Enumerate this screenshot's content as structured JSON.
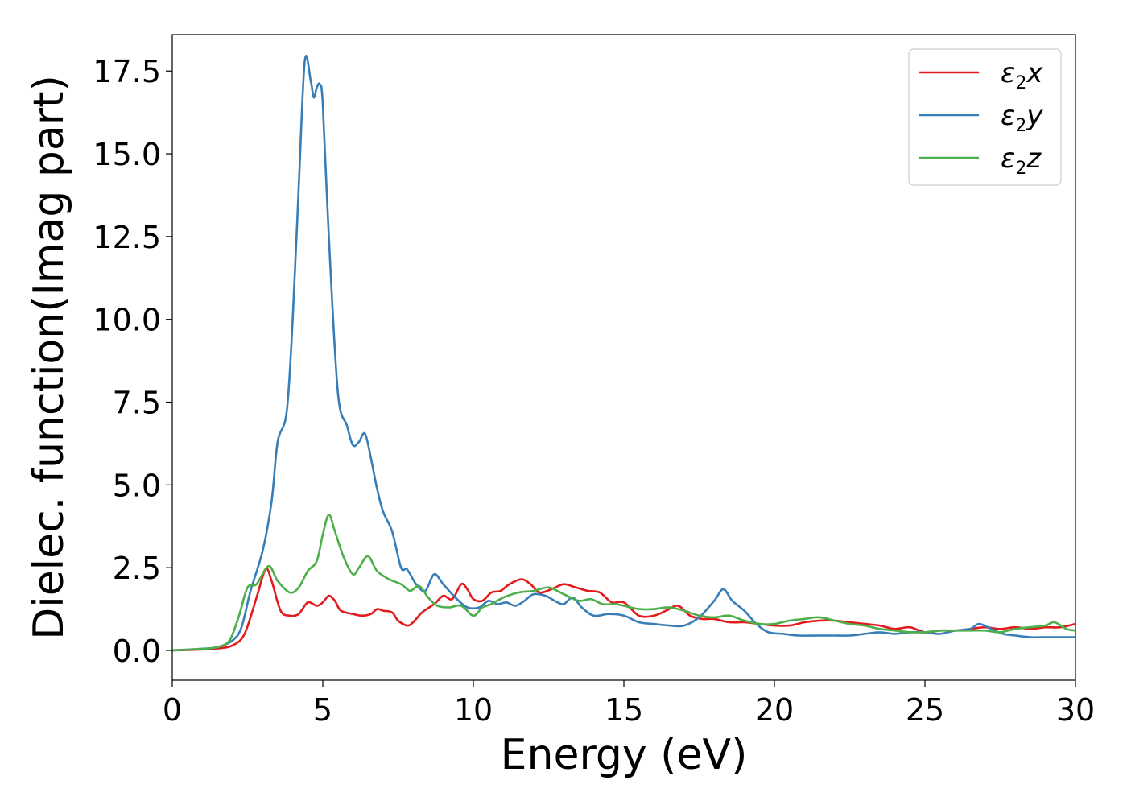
{
  "chart_data": {
    "type": "line",
    "xlabel": "Energy (eV)",
    "ylabel": "Dielec. function(Imag part)",
    "xlim": [
      0,
      30
    ],
    "ylim": [
      -0.9,
      18.6
    ],
    "x_ticks": [
      0,
      5,
      10,
      15,
      20,
      25,
      30
    ],
    "x_tick_labels": [
      "0",
      "5",
      "10",
      "15",
      "20",
      "25",
      "30"
    ],
    "y_ticks": [
      0,
      2.5,
      5,
      7.5,
      10,
      12.5,
      15,
      17.5
    ],
    "y_tick_labels": [
      "0.0",
      "2.5",
      "5.0",
      "7.5",
      "10.0",
      "12.5",
      "15.0",
      "17.5"
    ],
    "grid": false,
    "legend_position": "top-right",
    "series": [
      {
        "name": "ε2x",
        "legend": {
          "base": "ε",
          "sub": "2",
          "suffix": "x"
        },
        "color": "#e41a1c",
        "points": [
          [
            0,
            0
          ],
          [
            1,
            0.03
          ],
          [
            1.5,
            0.06
          ],
          [
            2,
            0.15
          ],
          [
            2.4,
            0.5
          ],
          [
            2.8,
            1.6
          ],
          [
            3.1,
            2.45
          ],
          [
            3.3,
            2.1
          ],
          [
            3.6,
            1.2
          ],
          [
            3.9,
            1.05
          ],
          [
            4.2,
            1.1
          ],
          [
            4.5,
            1.45
          ],
          [
            4.8,
            1.35
          ],
          [
            5.0,
            1.45
          ],
          [
            5.2,
            1.65
          ],
          [
            5.4,
            1.5
          ],
          [
            5.6,
            1.2
          ],
          [
            6.0,
            1.1
          ],
          [
            6.3,
            1.05
          ],
          [
            6.6,
            1.1
          ],
          [
            6.8,
            1.25
          ],
          [
            7.0,
            1.2
          ],
          [
            7.3,
            1.15
          ],
          [
            7.5,
            0.9
          ],
          [
            7.8,
            0.75
          ],
          [
            8.0,
            0.85
          ],
          [
            8.3,
            1.15
          ],
          [
            8.7,
            1.4
          ],
          [
            9.0,
            1.65
          ],
          [
            9.3,
            1.55
          ],
          [
            9.6,
            2.0
          ],
          [
            9.8,
            1.85
          ],
          [
            10.0,
            1.55
          ],
          [
            10.3,
            1.5
          ],
          [
            10.6,
            1.75
          ],
          [
            10.9,
            1.8
          ],
          [
            11.2,
            2.0
          ],
          [
            11.6,
            2.15
          ],
          [
            11.9,
            2.0
          ],
          [
            12.2,
            1.75
          ],
          [
            12.6,
            1.85
          ],
          [
            13.0,
            2.0
          ],
          [
            13.4,
            1.9
          ],
          [
            13.8,
            1.8
          ],
          [
            14.2,
            1.75
          ],
          [
            14.6,
            1.45
          ],
          [
            15.0,
            1.45
          ],
          [
            15.5,
            1.05
          ],
          [
            16.0,
            1.05
          ],
          [
            16.4,
            1.2
          ],
          [
            16.8,
            1.35
          ],
          [
            17.2,
            1.05
          ],
          [
            17.6,
            0.95
          ],
          [
            18.0,
            0.95
          ],
          [
            18.5,
            0.85
          ],
          [
            19.0,
            0.85
          ],
          [
            19.5,
            0.8
          ],
          [
            20.0,
            0.75
          ],
          [
            20.5,
            0.75
          ],
          [
            21.0,
            0.85
          ],
          [
            21.5,
            0.9
          ],
          [
            22.0,
            0.9
          ],
          [
            22.5,
            0.85
          ],
          [
            23.0,
            0.8
          ],
          [
            23.5,
            0.75
          ],
          [
            24.0,
            0.65
          ],
          [
            24.5,
            0.7
          ],
          [
            25.0,
            0.55
          ],
          [
            25.5,
            0.6
          ],
          [
            26.0,
            0.6
          ],
          [
            26.5,
            0.65
          ],
          [
            27.0,
            0.7
          ],
          [
            27.5,
            0.65
          ],
          [
            28.0,
            0.7
          ],
          [
            28.5,
            0.65
          ],
          [
            29.0,
            0.7
          ],
          [
            29.5,
            0.7
          ],
          [
            30.0,
            0.8
          ]
        ]
      },
      {
        "name": "ε2y",
        "legend": {
          "base": "ε",
          "sub": "2",
          "suffix": "y"
        },
        "color": "#377eb8",
        "points": [
          [
            0,
            0
          ],
          [
            1,
            0.05
          ],
          [
            1.5,
            0.1
          ],
          [
            2,
            0.3
          ],
          [
            2.3,
            0.7
          ],
          [
            2.6,
            1.8
          ],
          [
            3.0,
            3.0
          ],
          [
            3.3,
            4.5
          ],
          [
            3.5,
            6.3
          ],
          [
            3.8,
            7.2
          ],
          [
            4.0,
            10.0
          ],
          [
            4.2,
            14.0
          ],
          [
            4.4,
            17.8
          ],
          [
            4.6,
            17.2
          ],
          [
            4.7,
            16.7
          ],
          [
            4.8,
            17.0
          ],
          [
            4.9,
            17.1
          ],
          [
            5.0,
            16.5
          ],
          [
            5.2,
            12.5
          ],
          [
            5.5,
            7.8
          ],
          [
            5.8,
            6.8
          ],
          [
            6.0,
            6.2
          ],
          [
            6.2,
            6.3
          ],
          [
            6.4,
            6.55
          ],
          [
            6.6,
            5.8
          ],
          [
            6.8,
            4.9
          ],
          [
            7.0,
            4.2
          ],
          [
            7.3,
            3.6
          ],
          [
            7.6,
            2.5
          ],
          [
            7.8,
            2.45
          ],
          [
            8.1,
            2.0
          ],
          [
            8.4,
            1.8
          ],
          [
            8.7,
            2.3
          ],
          [
            9.0,
            2.0
          ],
          [
            9.4,
            1.6
          ],
          [
            9.8,
            1.3
          ],
          [
            10.2,
            1.3
          ],
          [
            10.5,
            1.5
          ],
          [
            10.8,
            1.4
          ],
          [
            11.1,
            1.45
          ],
          [
            11.4,
            1.35
          ],
          [
            11.7,
            1.5
          ],
          [
            12.0,
            1.7
          ],
          [
            12.4,
            1.65
          ],
          [
            12.7,
            1.5
          ],
          [
            13.0,
            1.4
          ],
          [
            13.3,
            1.6
          ],
          [
            13.6,
            1.3
          ],
          [
            14.0,
            1.05
          ],
          [
            14.5,
            1.1
          ],
          [
            15.0,
            1.05
          ],
          [
            15.5,
            0.85
          ],
          [
            16.0,
            0.8
          ],
          [
            16.5,
            0.75
          ],
          [
            17.0,
            0.75
          ],
          [
            17.5,
            1.0
          ],
          [
            18.0,
            1.5
          ],
          [
            18.3,
            1.85
          ],
          [
            18.6,
            1.5
          ],
          [
            19.0,
            1.2
          ],
          [
            19.4,
            0.8
          ],
          [
            19.8,
            0.55
          ],
          [
            20.3,
            0.5
          ],
          [
            20.8,
            0.45
          ],
          [
            21.5,
            0.45
          ],
          [
            22.0,
            0.45
          ],
          [
            22.5,
            0.45
          ],
          [
            23.0,
            0.5
          ],
          [
            23.5,
            0.55
          ],
          [
            24.0,
            0.5
          ],
          [
            24.5,
            0.55
          ],
          [
            25.0,
            0.55
          ],
          [
            25.5,
            0.5
          ],
          [
            26.0,
            0.6
          ],
          [
            26.5,
            0.65
          ],
          [
            26.8,
            0.8
          ],
          [
            27.2,
            0.65
          ],
          [
            27.6,
            0.5
          ],
          [
            28.0,
            0.45
          ],
          [
            28.5,
            0.4
          ],
          [
            29.0,
            0.4
          ],
          [
            29.5,
            0.4
          ],
          [
            30.0,
            0.4
          ]
        ]
      },
      {
        "name": "ε2z",
        "legend": {
          "base": "ε",
          "sub": "2",
          "suffix": "z"
        },
        "color": "#4daf4a",
        "points": [
          [
            0,
            0
          ],
          [
            1,
            0.05
          ],
          [
            1.5,
            0.1
          ],
          [
            1.9,
            0.3
          ],
          [
            2.2,
            1.0
          ],
          [
            2.5,
            1.9
          ],
          [
            2.8,
            2.0
          ],
          [
            3.2,
            2.55
          ],
          [
            3.5,
            2.1
          ],
          [
            3.9,
            1.75
          ],
          [
            4.2,
            1.9
          ],
          [
            4.5,
            2.4
          ],
          [
            4.8,
            2.7
          ],
          [
            5.0,
            3.5
          ],
          [
            5.2,
            4.1
          ],
          [
            5.4,
            3.6
          ],
          [
            5.7,
            2.8
          ],
          [
            6.0,
            2.3
          ],
          [
            6.2,
            2.5
          ],
          [
            6.5,
            2.85
          ],
          [
            6.8,
            2.4
          ],
          [
            7.2,
            2.15
          ],
          [
            7.6,
            2.0
          ],
          [
            7.9,
            1.8
          ],
          [
            8.2,
            1.95
          ],
          [
            8.5,
            1.6
          ],
          [
            8.8,
            1.35
          ],
          [
            9.2,
            1.3
          ],
          [
            9.6,
            1.35
          ],
          [
            10.0,
            1.05
          ],
          [
            10.3,
            1.3
          ],
          [
            10.6,
            1.4
          ],
          [
            11.0,
            1.6
          ],
          [
            11.5,
            1.75
          ],
          [
            12.0,
            1.8
          ],
          [
            12.5,
            1.9
          ],
          [
            13.0,
            1.7
          ],
          [
            13.5,
            1.5
          ],
          [
            13.9,
            1.55
          ],
          [
            14.3,
            1.4
          ],
          [
            14.7,
            1.4
          ],
          [
            15.0,
            1.35
          ],
          [
            15.5,
            1.25
          ],
          [
            16.0,
            1.25
          ],
          [
            16.5,
            1.3
          ],
          [
            17.0,
            1.2
          ],
          [
            17.5,
            1.05
          ],
          [
            18.0,
            1.0
          ],
          [
            18.5,
            1.05
          ],
          [
            19.0,
            0.9
          ],
          [
            19.5,
            0.8
          ],
          [
            20.0,
            0.8
          ],
          [
            20.5,
            0.9
          ],
          [
            21.0,
            0.95
          ],
          [
            21.5,
            1.0
          ],
          [
            22.0,
            0.9
          ],
          [
            22.5,
            0.8
          ],
          [
            23.0,
            0.75
          ],
          [
            23.5,
            0.65
          ],
          [
            24.0,
            0.6
          ],
          [
            24.5,
            0.55
          ],
          [
            25.0,
            0.55
          ],
          [
            25.5,
            0.6
          ],
          [
            26.0,
            0.6
          ],
          [
            26.5,
            0.6
          ],
          [
            27.0,
            0.6
          ],
          [
            27.5,
            0.55
          ],
          [
            28.0,
            0.65
          ],
          [
            28.5,
            0.7
          ],
          [
            29.0,
            0.75
          ],
          [
            29.3,
            0.85
          ],
          [
            29.7,
            0.65
          ],
          [
            30.0,
            0.6
          ]
        ]
      }
    ]
  }
}
